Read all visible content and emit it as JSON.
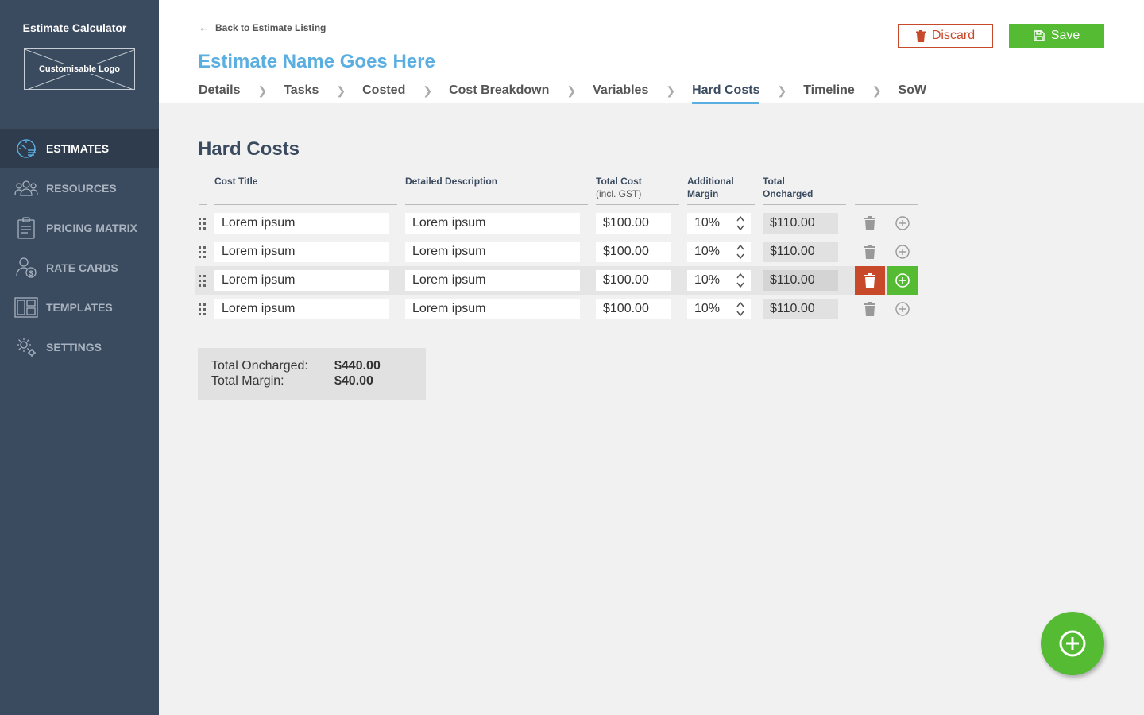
{
  "app": {
    "title": "Estimate Calculator",
    "logo_text": "Customisable Logo"
  },
  "sidebar": {
    "items": [
      {
        "label": "ESTIMATES",
        "icon": "speedometer-icon",
        "active": true
      },
      {
        "label": "RESOURCES",
        "icon": "people-icon"
      },
      {
        "label": "PRICING MATRIX",
        "icon": "clipboard-icon"
      },
      {
        "label": "RATE CARDS",
        "icon": "person-dollar-icon"
      },
      {
        "label": "TEMPLATES",
        "icon": "layout-icon"
      },
      {
        "label": "SETTINGS",
        "icon": "gear-icon"
      }
    ]
  },
  "header": {
    "back_label": "Back to Estimate Listing",
    "estimate_name": "Estimate Name Goes Here",
    "discard_label": "Discard",
    "save_label": "Save",
    "tabs": [
      "Details",
      "Tasks",
      "Costed",
      "Cost Breakdown",
      "Variables",
      "Hard Costs",
      "Timeline",
      "SoW"
    ],
    "active_tab": "Hard Costs"
  },
  "main": {
    "section_title": "Hard Costs",
    "columns": {
      "cost_title": "Cost Title",
      "detailed_description": "Detailed Description",
      "total_cost": "Total Cost",
      "total_cost_sub": "(incl. GST)",
      "margin_line1": "Additional",
      "margin_line2": "Margin",
      "oncharged_line1": "Total",
      "oncharged_line2": "Oncharged"
    },
    "rows": [
      {
        "title": "Lorem ipsum",
        "description": "Lorem ipsum",
        "total_cost": "$100.00",
        "margin": "10%",
        "oncharged": "$110.00"
      },
      {
        "title": "Lorem ipsum",
        "description": "Lorem ipsum",
        "total_cost": "$100.00",
        "margin": "10%",
        "oncharged": "$110.00"
      },
      {
        "title": "Lorem ipsum",
        "description": "Lorem ipsum",
        "total_cost": "$100.00",
        "margin": "10%",
        "oncharged": "$110.00"
      },
      {
        "title": "Lorem ipsum",
        "description": "Lorem ipsum",
        "total_cost": "$100.00",
        "margin": "10%",
        "oncharged": "$110.00"
      }
    ],
    "hovered_row": 2,
    "totals": {
      "oncharged_label": "Total Oncharged:",
      "oncharged_value": "$440.00",
      "margin_label": "Total Margin:",
      "margin_value": "$40.00"
    }
  },
  "colors": {
    "sidebar_bg": "#3a4a5f",
    "accent_blue": "#5aafe0",
    "save_green": "#55bb33",
    "discard_red": "#c8482a"
  }
}
